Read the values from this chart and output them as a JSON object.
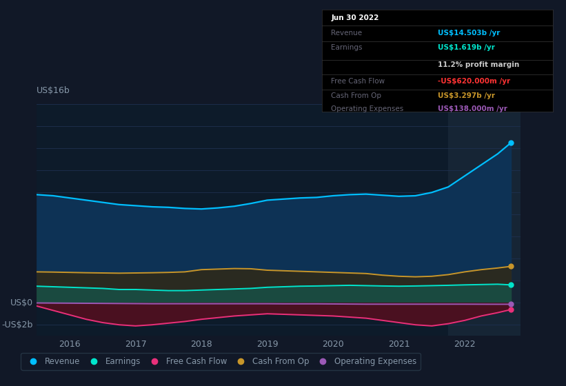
{
  "bg_color": "#111827",
  "plot_bg_color": "#0d1b2a",
  "grid_color": "#1e3050",
  "text_color": "#8899aa",
  "ylabel_text": "US$16b",
  "y0_text": "US$0",
  "yn2_text": "-US$2b",
  "x_years": [
    2015.5,
    2015.75,
    2016.0,
    2016.25,
    2016.5,
    2016.75,
    2017.0,
    2017.25,
    2017.5,
    2017.75,
    2018.0,
    2018.25,
    2018.5,
    2018.75,
    2019.0,
    2019.25,
    2019.5,
    2019.75,
    2020.0,
    2020.25,
    2020.5,
    2020.75,
    2021.0,
    2021.25,
    2021.5,
    2021.75,
    2022.0,
    2022.25,
    2022.5,
    2022.7
  ],
  "revenue": [
    9.8,
    9.7,
    9.5,
    9.3,
    9.1,
    8.9,
    8.8,
    8.7,
    8.65,
    8.55,
    8.5,
    8.6,
    8.75,
    9.0,
    9.3,
    9.4,
    9.5,
    9.55,
    9.7,
    9.8,
    9.85,
    9.75,
    9.65,
    9.7,
    10.0,
    10.5,
    11.5,
    12.5,
    13.5,
    14.5
  ],
  "earnings": [
    1.5,
    1.45,
    1.4,
    1.35,
    1.3,
    1.2,
    1.2,
    1.15,
    1.1,
    1.1,
    1.15,
    1.2,
    1.25,
    1.3,
    1.4,
    1.45,
    1.5,
    1.52,
    1.55,
    1.58,
    1.55,
    1.52,
    1.5,
    1.52,
    1.55,
    1.58,
    1.62,
    1.65,
    1.68,
    1.619
  ],
  "free_cash_flow": [
    -0.3,
    -0.7,
    -1.1,
    -1.5,
    -1.8,
    -2.0,
    -2.1,
    -2.0,
    -1.85,
    -1.7,
    -1.5,
    -1.35,
    -1.2,
    -1.1,
    -1.0,
    -1.05,
    -1.1,
    -1.15,
    -1.2,
    -1.3,
    -1.4,
    -1.6,
    -1.8,
    -2.0,
    -2.1,
    -1.9,
    -1.6,
    -1.2,
    -0.9,
    -0.62
  ],
  "cash_from_op": [
    2.8,
    2.78,
    2.75,
    2.72,
    2.7,
    2.68,
    2.7,
    2.72,
    2.75,
    2.8,
    3.0,
    3.05,
    3.1,
    3.08,
    2.95,
    2.9,
    2.85,
    2.8,
    2.75,
    2.7,
    2.65,
    2.5,
    2.4,
    2.35,
    2.4,
    2.55,
    2.8,
    3.0,
    3.15,
    3.297
  ],
  "operating_expenses": [
    -0.02,
    -0.03,
    -0.04,
    -0.05,
    -0.06,
    -0.07,
    -0.08,
    -0.09,
    -0.09,
    -0.09,
    -0.09,
    -0.09,
    -0.09,
    -0.09,
    -0.09,
    -0.1,
    -0.1,
    -0.1,
    -0.11,
    -0.12,
    -0.13,
    -0.13,
    -0.13,
    -0.13,
    -0.13,
    -0.13,
    -0.13,
    -0.135,
    -0.138,
    -0.138
  ],
  "revenue_color": "#00bfff",
  "earnings_color": "#00e5cc",
  "fcf_color": "#e8307a",
  "cash_op_color": "#c8962a",
  "op_exp_color": "#9b59b6",
  "revenue_fill": "#0d3255",
  "earnings_fill": "#1a4a40",
  "fcf_fill": "#4a1020",
  "cash_op_fill": "#2a2a20",
  "ylim": [
    -3.0,
    18.0
  ],
  "xlim": [
    2015.5,
    2022.85
  ],
  "xtick_years": [
    2016,
    2017,
    2018,
    2019,
    2020,
    2021,
    2022
  ],
  "highlight_start": 2021.75,
  "highlight_end": 2022.85,
  "tooltip_date": "Jun 30 2022",
  "tooltip_revenue_label": "Revenue",
  "tooltip_revenue_val": "US$14.503b /yr",
  "tooltip_earnings_label": "Earnings",
  "tooltip_earnings_val": "US$1.619b /yr",
  "tooltip_margin": "11.2% profit margin",
  "tooltip_fcf_label": "Free Cash Flow",
  "tooltip_fcf_val": "-US$620.000m /yr",
  "tooltip_cashop_label": "Cash From Op",
  "tooltip_cashop_val": "US$3.297b /yr",
  "tooltip_opex_label": "Operating Expenses",
  "tooltip_opex_val": "US$138.000m /yr",
  "legend_items": [
    "Revenue",
    "Earnings",
    "Free Cash Flow",
    "Cash From Op",
    "Operating Expenses"
  ],
  "legend_colors": [
    "#00bfff",
    "#00e5cc",
    "#e8307a",
    "#c8962a",
    "#9b59b6"
  ]
}
